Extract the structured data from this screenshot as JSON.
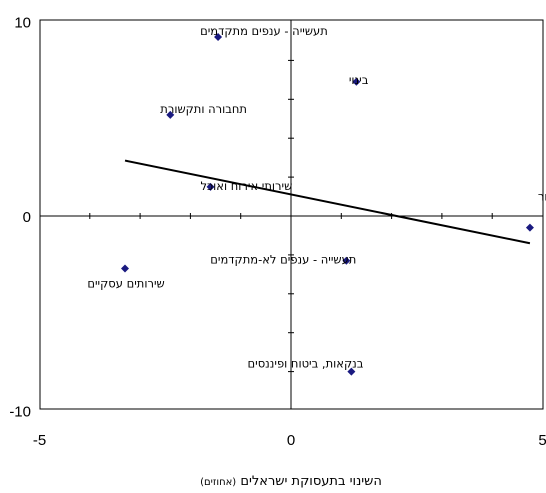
{
  "chart_data": {
    "type": "scatter",
    "title": "",
    "xlabel": "השינוי בתעסוקת ישראלים",
    "xlabel_note": "(אחוזים)",
    "ylabel": "",
    "xlim": [
      -5,
      5
    ],
    "ylim": [
      -10,
      10
    ],
    "x_ticks": [
      "-5",
      "0",
      "5"
    ],
    "y_ticks": [
      "10",
      "0",
      "-10"
    ],
    "grid": false,
    "marker_color": "#1a1a80",
    "line_color": "#000000",
    "points": [
      {
        "label": "תעשייה - ענפים מתקדמים",
        "x": -1.45,
        "y": 9.2
      },
      {
        "label": "בינוי",
        "x": 1.3,
        "y": 6.9
      },
      {
        "label": "תחבורה ותקשורת",
        "x": -2.4,
        "y": 5.2
      },
      {
        "label": "שירותי אירוח ואוכל",
        "x": -1.6,
        "y": 1.5
      },
      {
        "label": "מסחר",
        "x": 4.75,
        "y": -0.6
      },
      {
        "label": "שירותים עסקיים",
        "x": -3.3,
        "y": -2.7
      },
      {
        "label": "תעשייה - ענפים לא-מתקדמים",
        "x": 1.1,
        "y": -2.3
      },
      {
        "label": "בנקאות, ביטוח ופיננסים",
        "x": 1.2,
        "y": -8.0
      }
    ],
    "trendline": {
      "x": [
        -3.3,
        4.75
      ],
      "y": [
        2.85,
        -1.4
      ]
    }
  }
}
